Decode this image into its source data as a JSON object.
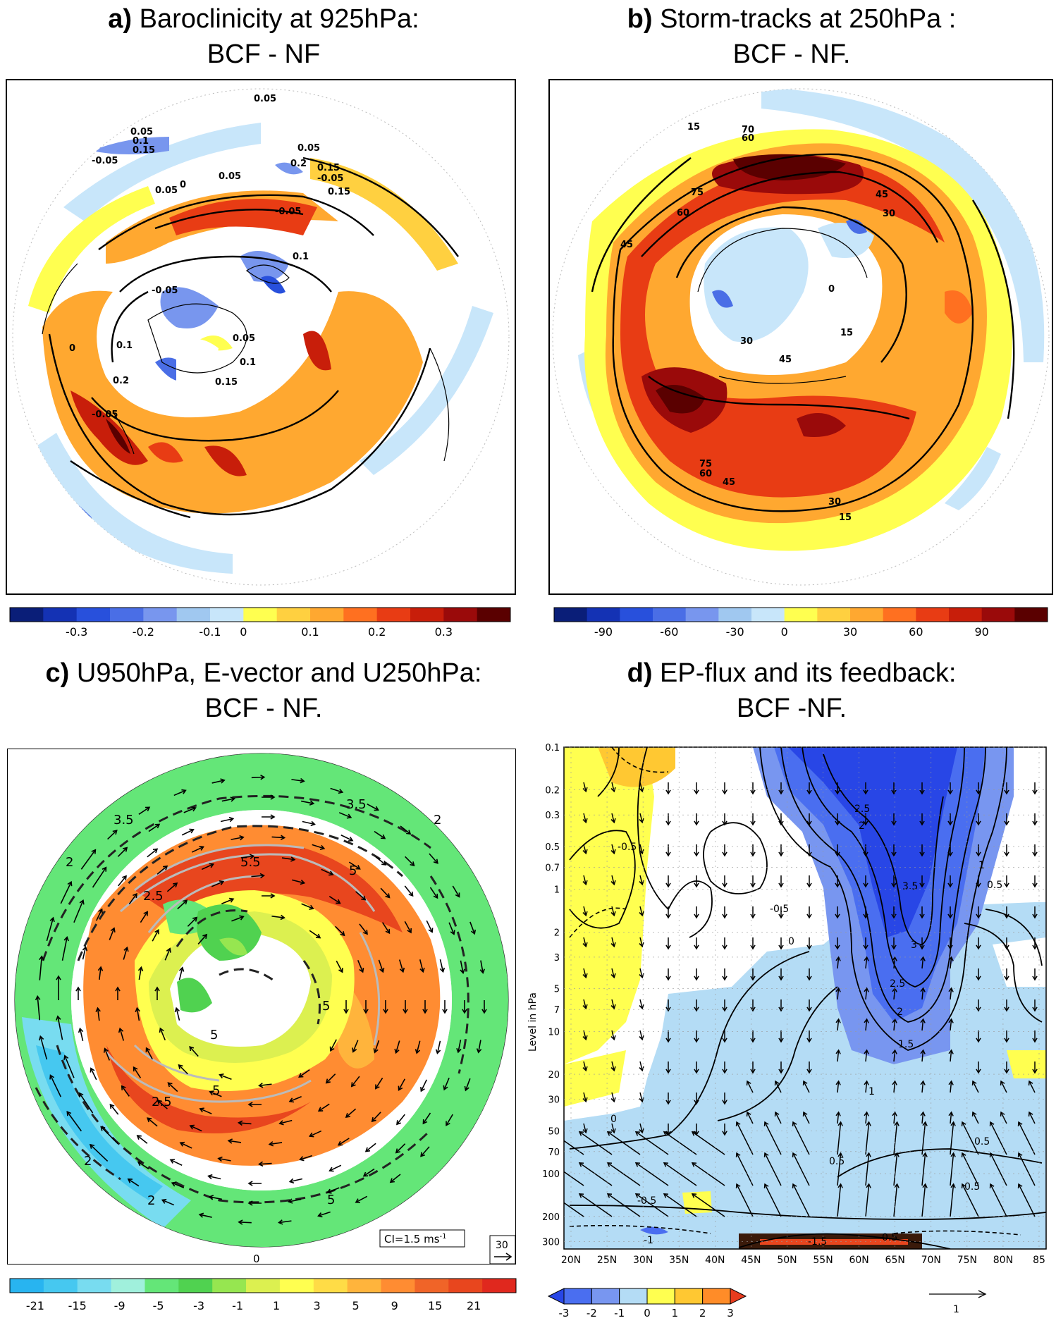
{
  "panels": {
    "a": {
      "letter": "a)",
      "title_line1": "Baroclinicity at 925hPa:",
      "title_line2": "BCF - NF",
      "colorbar_ticks": [
        "-0.3",
        "-0.2",
        "-0.1",
        "0",
        "0.1",
        "0.2",
        "0.3"
      ],
      "colorbar_colors": [
        "#0a1e78",
        "#1432b4",
        "#2850dc",
        "#4a6ee6",
        "#7896ee",
        "#a0c8f0",
        "#c8e6fa",
        "#ffff50",
        "#ffd040",
        "#ffa830",
        "#ff7020",
        "#e83c14",
        "#c81e0a",
        "#9a0a0a",
        "#5a0000"
      ],
      "contour_labels": [
        "0.05",
        "0.05",
        "0.1",
        "0.15",
        "-0.05",
        "0.2",
        "0.15",
        "0.05",
        "0.05",
        "-0.05",
        "0.05",
        "0.1",
        "-0.05",
        "0.1",
        "0.2",
        "0.05",
        "0.1",
        "0.15",
        "-0.05",
        "0",
        "0",
        "-0.05",
        "0.15"
      ]
    },
    "b": {
      "letter": "b)",
      "title_line1": "Storm-tracks at 250hPa :",
      "title_line2": "BCF - NF.",
      "colorbar_ticks": [
        "-90",
        "-60",
        "-30",
        "0",
        "30",
        "60",
        "90"
      ],
      "colorbar_colors": [
        "#0a1e78",
        "#1432b4",
        "#2850dc",
        "#4a6ee6",
        "#7896ee",
        "#a0c8f0",
        "#c8e6fa",
        "#ffff50",
        "#ffd040",
        "#ffa830",
        "#ff7020",
        "#e83c14",
        "#c81e0a",
        "#9a0a0a",
        "#5a0000"
      ],
      "contour_labels": [
        "15",
        "70",
        "60",
        "75",
        "60",
        "45",
        "45",
        "30",
        "15",
        "30",
        "45",
        "75",
        "60",
        "45",
        "30",
        "15",
        "0"
      ]
    },
    "c": {
      "letter": "c)",
      "title_line1": "U950hPa,  E-vector and U250hPa:",
      "title_line2": "BCF - NF.",
      "colorbar_ticks": [
        "-21",
        "-15",
        "-9",
        "-5",
        "-3",
        "-1",
        "1",
        "3",
        "5",
        "9",
        "15",
        "21"
      ],
      "colorbar_colors": [
        "#28b4f0",
        "#46c8f0",
        "#78dcf0",
        "#a0f0dc",
        "#64e678",
        "#50d250",
        "#96e650",
        "#dcf050",
        "#ffff50",
        "#ffdc46",
        "#ffb43c",
        "#ff8c32",
        "#f06428",
        "#e8461e",
        "#e0281e"
      ],
      "contour_labels": [
        "3.5",
        "3.5",
        "2",
        "5.5",
        "2",
        "5",
        "2.5",
        "5",
        "5",
        "2.5",
        "5",
        "2",
        "2",
        "5",
        "0"
      ],
      "ci_label": "CI=1.5 ms",
      "ci_superscript": "-1",
      "ref_vector_label": "30"
    },
    "d": {
      "letter": "d)",
      "title_line1": "EP-flux and its feedback:",
      "title_line2": "BCF -NF.",
      "ylabel": "Level in hPa",
      "y_ticks": [
        "0.1",
        "0.2",
        "0.3",
        "0.5",
        "0.7",
        "1",
        "2",
        "3",
        "5",
        "7",
        "10",
        "20",
        "30",
        "50",
        "70",
        "100",
        "200",
        "300"
      ],
      "x_ticks": [
        "20N",
        "25N",
        "30N",
        "35N",
        "40N",
        "45N",
        "50N",
        "55N",
        "60N",
        "65N",
        "70N",
        "75N",
        "80N",
        "85"
      ],
      "colorbar_ticks": [
        "-3",
        "-2",
        "-1",
        "0",
        "1",
        "2",
        "3"
      ],
      "colorbar_colors": [
        "#2846e6",
        "#4a6ef0",
        "#7896f0",
        "#b4dcf5",
        "#ffff50",
        "#ffc832",
        "#ff8c28",
        "#e83c1e"
      ],
      "contour_labels": [
        "-0.5",
        "2.5",
        "2",
        "3.5",
        "-0.5",
        "1",
        "0.5",
        "0",
        "3",
        "2.5",
        "2",
        "1.5",
        "1",
        "0",
        "0.5",
        "0.5",
        "-0.5",
        "0.5",
        "-1.5",
        "-0.5",
        "-1"
      ],
      "ref_vector_label": "1"
    }
  }
}
